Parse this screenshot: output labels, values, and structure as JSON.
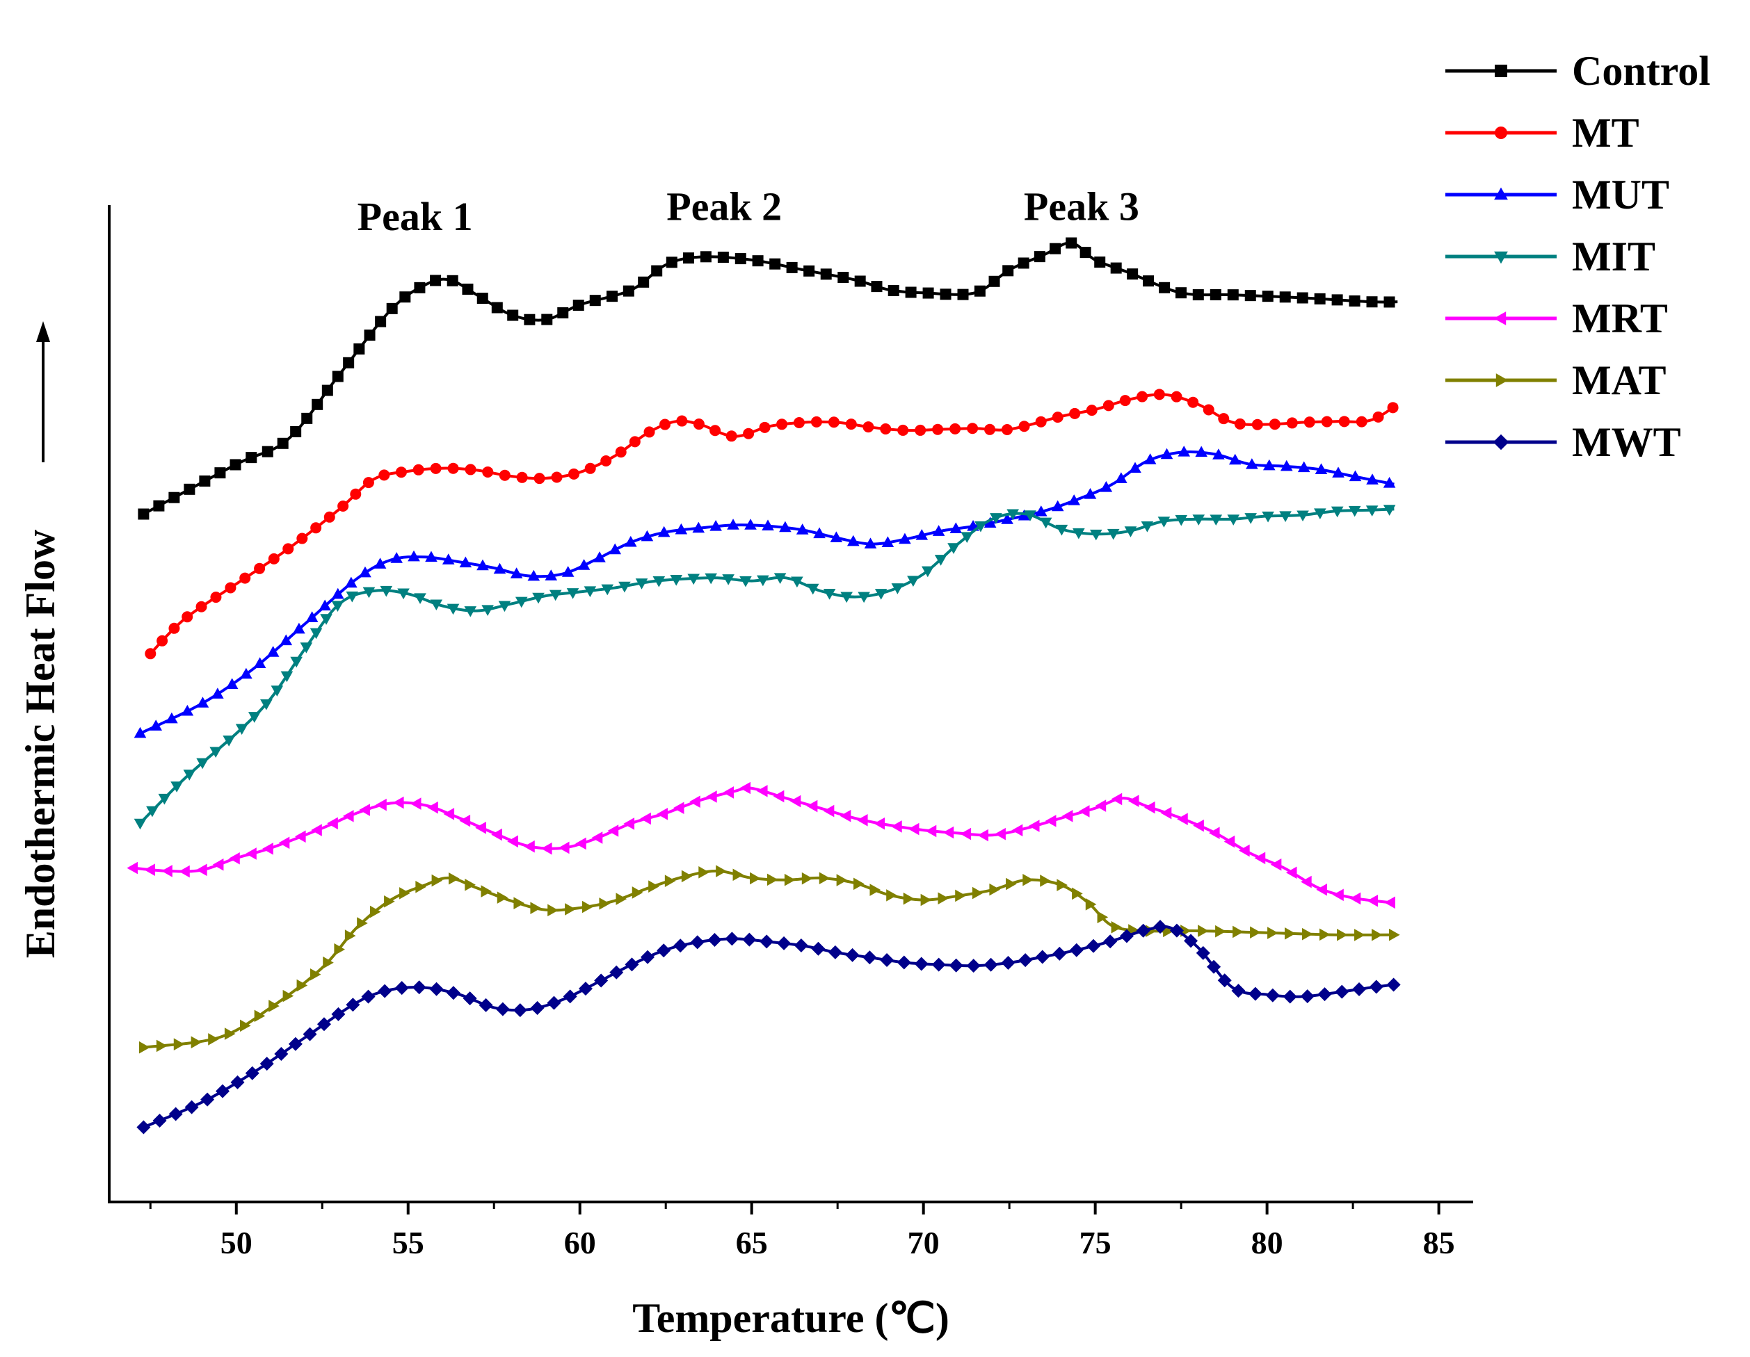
{
  "chart_data": {
    "type": "line",
    "xlabel": "Temperature (℃)",
    "ylabel": "Endothermic Heat Flow",
    "xlim": [
      46.3,
      86
    ],
    "ylim": [
      0,
      100
    ],
    "xticks": [
      50,
      55,
      60,
      65,
      70,
      75,
      80,
      85
    ],
    "y_ticks_shown": false,
    "grid": false,
    "legend_position": "top-right",
    "annotations": [
      {
        "text": "Peak 1",
        "x": 55.2,
        "y": 97.5
      },
      {
        "text": "Peak 2",
        "x": 64.2,
        "y": 98.5
      },
      {
        "text": "Peak 3",
        "x": 74.6,
        "y": 98.5
      }
    ],
    "series": [
      {
        "name": "Control",
        "color": "#000000",
        "marker": "square",
        "x": [
          47.3,
          50.0,
          51.5,
          53.0,
          54.5,
          55.5,
          56.2,
          57.0,
          58.0,
          59.0,
          60.0,
          61.5,
          62.5,
          63.5,
          65.0,
          66.5,
          68.0,
          69.0,
          70.0,
          71.5,
          72.5,
          73.5,
          74.3,
          75.0,
          76.0,
          77.5,
          79.0,
          81.0,
          83.0,
          83.8
        ],
        "y": [
          69.0,
          74.0,
          76.5,
          83.0,
          89.5,
          92.0,
          92.5,
          91.0,
          89.0,
          88.5,
          90.0,
          91.5,
          94.0,
          94.8,
          94.5,
          93.5,
          92.5,
          91.5,
          91.2,
          91.2,
          93.5,
          95.0,
          96.2,
          94.5,
          93.2,
          91.2,
          91.0,
          90.7,
          90.3,
          90.3
        ]
      },
      {
        "name": "MT",
        "color": "#ff0000",
        "marker": "circle",
        "x": [
          47.5,
          48.5,
          50.0,
          51.5,
          53.0,
          54.0,
          55.0,
          56.0,
          57.0,
          58.0,
          59.0,
          60.0,
          61.0,
          62.0,
          62.8,
          63.5,
          64.5,
          65.5,
          66.5,
          67.5,
          68.5,
          69.5,
          70.5,
          71.5,
          72.5,
          74.0,
          75.0,
          76.0,
          77.0,
          78.0,
          79.0,
          80.0,
          81.0,
          82.0,
          83.0,
          83.8
        ],
        "y": [
          55.0,
          58.5,
          62.0,
          65.5,
          69.5,
          72.5,
          73.3,
          73.6,
          73.4,
          72.8,
          72.6,
          73.2,
          74.8,
          77.2,
          78.3,
          78.0,
          76.8,
          77.8,
          78.2,
          78.2,
          77.7,
          77.4,
          77.5,
          77.6,
          77.5,
          78.8,
          79.5,
          80.5,
          81.0,
          80.0,
          78.2,
          78.0,
          78.2,
          78.3,
          78.4,
          80.0
        ]
      },
      {
        "name": "MUT",
        "color": "#0000ff",
        "marker": "triangle-up",
        "x": [
          47.2,
          49.0,
          50.5,
          52.0,
          53.5,
          54.5,
          55.5,
          56.5,
          57.5,
          58.5,
          59.5,
          60.5,
          61.5,
          62.5,
          63.5,
          64.5,
          65.5,
          66.5,
          67.5,
          68.5,
          69.5,
          70.5,
          71.5,
          72.5,
          73.5,
          74.5,
          75.5,
          76.5,
          77.5,
          78.5,
          79.5,
          80.5,
          81.5,
          82.5,
          83.7
        ],
        "y": [
          47.0,
          50.0,
          53.5,
          58.0,
          62.5,
          64.4,
          64.7,
          64.2,
          63.6,
          62.8,
          63.0,
          64.5,
          66.2,
          67.2,
          67.6,
          67.9,
          67.8,
          67.4,
          66.6,
          66.0,
          66.5,
          67.3,
          67.8,
          68.5,
          69.3,
          70.5,
          72.0,
          74.3,
          75.2,
          75.0,
          74.0,
          73.8,
          73.5,
          72.8,
          72.0
        ]
      },
      {
        "name": "MIT",
        "color": "#008080",
        "marker": "triangle-down",
        "x": [
          47.2,
          48.5,
          50.0,
          51.0,
          52.0,
          53.0,
          54.0,
          55.0,
          56.0,
          57.0,
          58.0,
          59.0,
          60.0,
          61.0,
          62.0,
          63.0,
          64.0,
          65.0,
          66.0,
          67.0,
          68.0,
          69.0,
          70.0,
          71.0,
          72.0,
          73.0,
          74.0,
          75.0,
          76.0,
          77.0,
          78.0,
          79.0,
          80.0,
          81.0,
          82.0,
          83.0,
          83.7
        ],
        "y": [
          38.0,
          42.5,
          47.0,
          50.5,
          55.5,
          60.0,
          61.3,
          61.0,
          59.8,
          59.3,
          60.0,
          60.8,
          61.2,
          61.6,
          62.2,
          62.5,
          62.6,
          62.3,
          62.6,
          61.3,
          60.7,
          61.3,
          63.0,
          66.0,
          68.5,
          69.0,
          67.5,
          67.0,
          67.3,
          68.3,
          68.5,
          68.5,
          68.8,
          68.9,
          69.3,
          69.4,
          69.5
        ]
      },
      {
        "name": "MRT",
        "color": "#ff00ff",
        "marker": "triangle-left",
        "x": [
          47.0,
          48.0,
          49.0,
          50.0,
          51.0,
          52.5,
          53.5,
          54.5,
          55.5,
          56.5,
          57.5,
          58.5,
          59.5,
          60.5,
          61.5,
          62.5,
          63.5,
          64.5,
          65.0,
          66.0,
          67.0,
          68.0,
          69.0,
          70.0,
          71.0,
          72.0,
          73.0,
          74.0,
          75.0,
          75.8,
          76.5,
          77.5,
          78.5,
          79.5,
          80.5,
          81.5,
          82.5,
          83.7
        ],
        "y": [
          33.5,
          33.2,
          33.3,
          34.5,
          35.5,
          37.5,
          39.0,
          40.0,
          39.8,
          38.5,
          37.0,
          35.7,
          35.5,
          36.5,
          38.0,
          39.0,
          40.3,
          41.2,
          41.5,
          40.5,
          39.5,
          38.5,
          37.8,
          37.3,
          37.0,
          36.8,
          37.5,
          38.5,
          39.5,
          40.5,
          39.7,
          38.5,
          37.0,
          35.0,
          33.5,
          31.5,
          30.5,
          30.0
        ]
      },
      {
        "name": "MAT",
        "color": "#808000",
        "marker": "triangle-right",
        "x": [
          47.3,
          49.5,
          51.0,
          52.5,
          53.5,
          54.5,
          55.5,
          56.2,
          57.0,
          58.0,
          59.0,
          60.0,
          61.0,
          62.0,
          63.0,
          64.0,
          65.0,
          66.0,
          67.0,
          68.0,
          69.0,
          70.0,
          71.0,
          72.0,
          73.0,
          74.0,
          74.8,
          75.5,
          76.5,
          78.0,
          80.0,
          82.0,
          83.8
        ],
        "y": [
          15.5,
          16.5,
          19.5,
          23.5,
          27.5,
          30.3,
          31.8,
          32.5,
          31.5,
          30.2,
          29.3,
          29.5,
          30.2,
          31.5,
          32.6,
          33.2,
          32.5,
          32.3,
          32.5,
          32.0,
          30.8,
          30.3,
          30.7,
          31.3,
          32.3,
          31.8,
          30.0,
          27.7,
          27.2,
          27.2,
          27.0,
          26.8,
          26.8
        ]
      },
      {
        "name": "MWT",
        "color": "#00008b",
        "marker": "diamond",
        "x": [
          47.3,
          49.0,
          50.5,
          52.0,
          53.5,
          54.5,
          55.5,
          56.5,
          57.5,
          58.5,
          59.5,
          60.5,
          61.5,
          62.5,
          63.5,
          64.5,
          65.5,
          66.5,
          67.5,
          68.5,
          69.5,
          70.5,
          71.5,
          72.5,
          73.5,
          74.5,
          75.5,
          76.5,
          77.2,
          78.0,
          79.0,
          80.0,
          81.0,
          82.0,
          83.0,
          83.7
        ],
        "y": [
          7.5,
          10.0,
          13.0,
          16.5,
          20.0,
          21.3,
          21.5,
          20.8,
          19.5,
          19.3,
          20.3,
          22.0,
          23.8,
          25.3,
          26.1,
          26.4,
          26.1,
          25.7,
          25.0,
          24.5,
          24.0,
          23.8,
          23.7,
          24.0,
          24.6,
          25.3,
          26.2,
          27.3,
          27.5,
          25.5,
          21.5,
          20.8,
          20.6,
          21.0,
          21.5,
          21.8
        ]
      }
    ]
  }
}
